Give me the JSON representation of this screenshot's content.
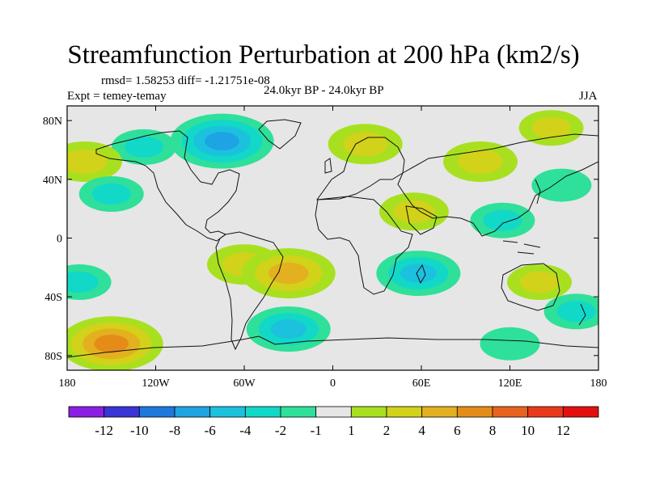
{
  "title": "Streamfunction Perturbation at 200 hPa (km2/s)",
  "stats": "rmsd= 1.58253 diff= -1.21751e-08",
  "experiment": "Expt = temey-temay",
  "period": "24.0kyr BP - 24.0kyr BP",
  "season": "JJA",
  "colors": {
    "c_lt_m12": "#8b1fe3",
    "c_m12_m10": "#3a35d6",
    "c_m10_m8": "#1f78dc",
    "c_m8_m6": "#1ea3e3",
    "c_m6_m4": "#1cc1de",
    "c_m4_m2": "#12d8c8",
    "c_m2_m1": "#2fe09a",
    "c_m1_1": "#e6e6e6",
    "c_1_2": "#a8e020",
    "c_2_4": "#d2d21a",
    "c_4_6": "#e3b020",
    "c_6_8": "#e58c18",
    "c_8_10": "#e8641e",
    "c_10_12": "#e83a1a",
    "c_gt_12": "#e31010"
  },
  "chart_data": {
    "type": "heatmap",
    "projection": "cylindrical equidistant",
    "title": "Streamfunction Perturbation at 200 hPa (km2/s)",
    "x_ticks": [
      "180",
      "120W",
      "60W",
      "0",
      "60E",
      "120E",
      "180"
    ],
    "y_ticks": [
      "80N",
      "40N",
      "0",
      "40S",
      "80S"
    ],
    "lon_range": [
      -180,
      180
    ],
    "lat_range": [
      -90,
      90
    ],
    "colorbar_labels": [
      "-12",
      "-10",
      "-8",
      "-6",
      "-4",
      "-2",
      "-1",
      "1",
      "2",
      "4",
      "6",
      "8",
      "10",
      "12"
    ],
    "colorbar_colors": [
      "#8b1fe3",
      "#3a35d6",
      "#1f78dc",
      "#1ea3e3",
      "#1cc1de",
      "#12d8c8",
      "#2fe09a",
      "#e6e6e6",
      "#a8e020",
      "#d2d21a",
      "#e3b020",
      "#e58c18",
      "#e8641e",
      "#e83a1a",
      "#e31010"
    ],
    "anomaly_centers": [
      {
        "lon": -75,
        "lat": 66,
        "value": -6
      },
      {
        "lon": -128,
        "lat": 62,
        "value": -2
      },
      {
        "lon": 22,
        "lat": 64,
        "value": 3
      },
      {
        "lon": -168,
        "lat": 52,
        "value": 3
      },
      {
        "lon": -150,
        "lat": 30,
        "value": -2
      },
      {
        "lon": 148,
        "lat": 75,
        "value": 2
      },
      {
        "lon": 100,
        "lat": 52,
        "value": 3
      },
      {
        "lon": 155,
        "lat": 36,
        "value": -1.5
      },
      {
        "lon": 55,
        "lat": 18,
        "value": 2.5
      },
      {
        "lon": 115,
        "lat": 12,
        "value": -2
      },
      {
        "lon": -60,
        "lat": -18,
        "value": 3
      },
      {
        "lon": -30,
        "lat": -24,
        "value": 5
      },
      {
        "lon": 58,
        "lat": -24,
        "value": -4
      },
      {
        "lon": 140,
        "lat": -30,
        "value": 2
      },
      {
        "lon": -172,
        "lat": -30,
        "value": -2
      },
      {
        "lon": -150,
        "lat": -72,
        "value": 6
      },
      {
        "lon": -30,
        "lat": -62,
        "value": -4
      },
      {
        "lon": 120,
        "lat": -72,
        "value": -1.5
      },
      {
        "lon": 165,
        "lat": -50,
        "value": -2
      }
    ]
  }
}
